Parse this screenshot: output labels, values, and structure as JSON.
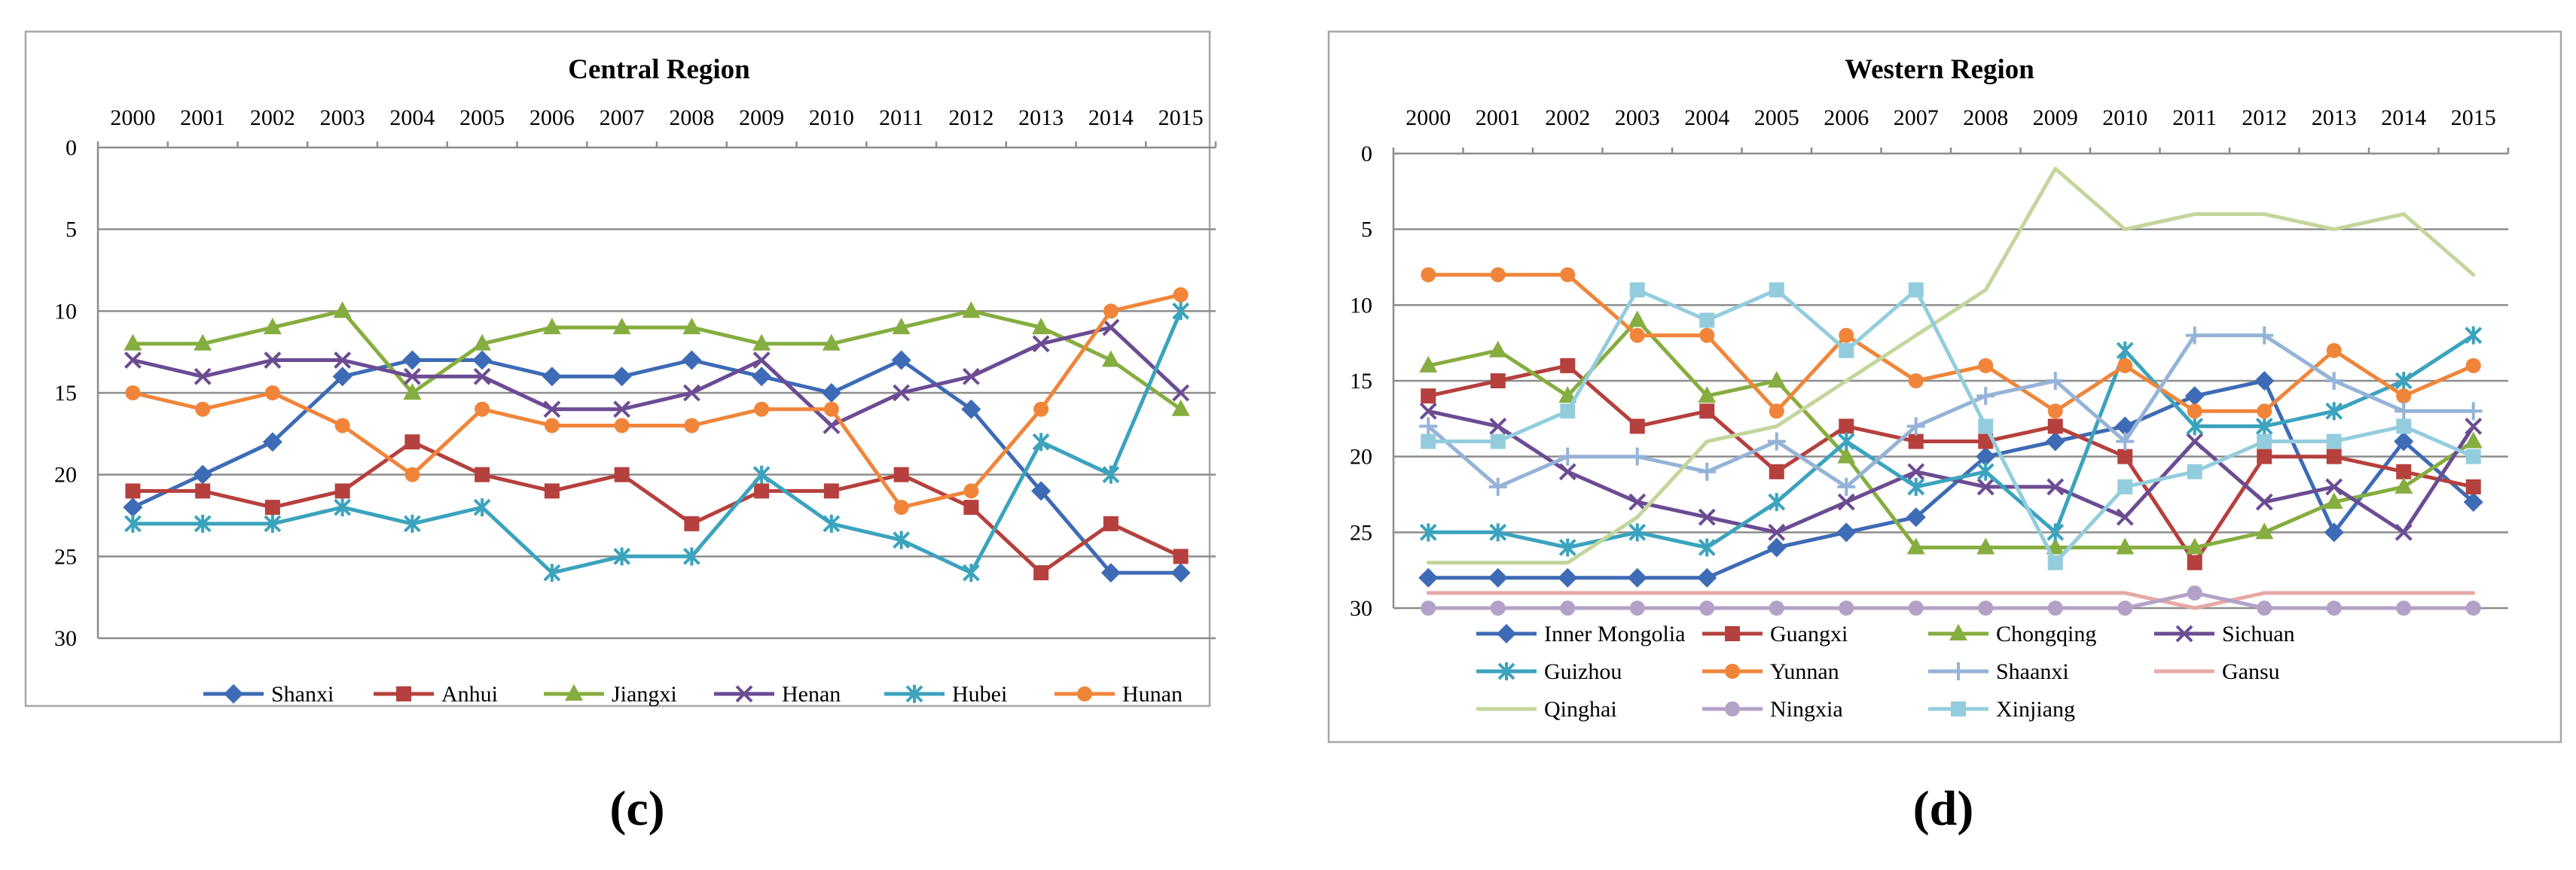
{
  "captions": [
    "(c)",
    "(d)"
  ],
  "chart_data": [
    {
      "type": "line",
      "title": "Central Region",
      "x": [
        "2000",
        "2001",
        "2002",
        "2003",
        "2004",
        "2005",
        "2006",
        "2007",
        "2008",
        "2009",
        "2010",
        "2011",
        "2012",
        "2013",
        "2014",
        "2015"
      ],
      "y_ticks": [
        "0",
        "5",
        "10",
        "15",
        "20",
        "25",
        "30"
      ],
      "ylim": [
        0,
        30
      ],
      "y_inverted": true,
      "x_axis_position": "top",
      "grid": true,
      "legend_position": "bottom",
      "series": [
        {
          "name": "Shanxi",
          "color": "#3d6bb5",
          "marker": "diamond",
          "values": [
            22,
            20,
            18,
            14,
            13,
            13,
            14,
            14,
            13,
            14,
            15,
            13,
            16,
            21,
            26,
            26
          ]
        },
        {
          "name": "Anhui",
          "color": "#b5403d",
          "marker": "square",
          "values": [
            21,
            21,
            22,
            21,
            18,
            20,
            21,
            20,
            23,
            21,
            21,
            20,
            22,
            26,
            23,
            25
          ]
        },
        {
          "name": "Jiangxi",
          "color": "#86ad3f",
          "marker": "triangle",
          "values": [
            12,
            12,
            11,
            10,
            15,
            12,
            11,
            11,
            11,
            12,
            12,
            11,
            10,
            11,
            13,
            16
          ]
        },
        {
          "name": "Henan",
          "color": "#6b4c93",
          "marker": "x",
          "values": [
            13,
            14,
            13,
            13,
            14,
            14,
            16,
            16,
            15,
            13,
            17,
            15,
            14,
            12,
            11,
            15
          ]
        },
        {
          "name": "Hubei",
          "color": "#3ba3bd",
          "marker": "asterisk",
          "values": [
            23,
            23,
            23,
            22,
            23,
            22,
            26,
            25,
            25,
            20,
            23,
            24,
            26,
            18,
            20,
            10
          ]
        },
        {
          "name": "Hunan",
          "color": "#f0853a",
          "marker": "circle",
          "values": [
            15,
            16,
            15,
            17,
            20,
            16,
            17,
            17,
            17,
            16,
            16,
            22,
            21,
            16,
            10,
            9
          ]
        }
      ]
    },
    {
      "type": "line",
      "title": "Western Region",
      "x": [
        "2000",
        "2001",
        "2002",
        "2003",
        "2004",
        "2005",
        "2006",
        "2007",
        "2008",
        "2009",
        "2010",
        "2011",
        "2012",
        "2013",
        "2014",
        "2015"
      ],
      "y_ticks": [
        "0",
        "5",
        "10",
        "15",
        "20",
        "25",
        "30"
      ],
      "ylim": [
        0,
        30
      ],
      "y_inverted": true,
      "x_axis_position": "top",
      "grid": true,
      "legend_position": "bottom",
      "series": [
        {
          "name": "Inner Mongolia",
          "color": "#3d6bb5",
          "marker": "diamond",
          "values": [
            28,
            28,
            28,
            28,
            28,
            26,
            25,
            24,
            20,
            19,
            18,
            16,
            15,
            25,
            19,
            23
          ]
        },
        {
          "name": "Guangxi",
          "color": "#b5403d",
          "marker": "square",
          "values": [
            16,
            15,
            14,
            18,
            17,
            21,
            18,
            19,
            19,
            18,
            20,
            27,
            20,
            20,
            21,
            22
          ]
        },
        {
          "name": "Chongqing",
          "color": "#86ad3f",
          "marker": "triangle",
          "values": [
            14,
            13,
            16,
            11,
            16,
            15,
            20,
            26,
            26,
            26,
            26,
            26,
            25,
            23,
            22,
            19
          ]
        },
        {
          "name": "Sichuan",
          "color": "#6b4c93",
          "marker": "x",
          "values": [
            17,
            18,
            21,
            23,
            24,
            25,
            23,
            21,
            22,
            22,
            24,
            19,
            23,
            22,
            25,
            18
          ]
        },
        {
          "name": "Guizhou",
          "color": "#3ba3bd",
          "marker": "asterisk",
          "values": [
            25,
            25,
            26,
            25,
            26,
            23,
            19,
            22,
            21,
            25,
            13,
            18,
            18,
            17,
            15,
            12
          ]
        },
        {
          "name": "Yunnan",
          "color": "#f0853a",
          "marker": "circle",
          "values": [
            8,
            8,
            8,
            12,
            12,
            17,
            12,
            15,
            14,
            17,
            14,
            17,
            17,
            13,
            16,
            14
          ]
        },
        {
          "name": "Shaanxi",
          "color": "#95b3d7",
          "marker": "plus",
          "values": [
            18,
            22,
            20,
            20,
            21,
            19,
            22,
            18,
            16,
            15,
            19,
            12,
            12,
            15,
            17,
            17
          ]
        },
        {
          "name": "Gansu",
          "color": "#e6a9a6",
          "marker": "none",
          "values": [
            29,
            29,
            29,
            29,
            29,
            29,
            29,
            29,
            29,
            29,
            29,
            30,
            29,
            29,
            29,
            29
          ]
        },
        {
          "name": "Qinghai",
          "color": "#c3d69b",
          "marker": "none",
          "values": [
            27,
            27,
            27,
            24,
            19,
            18,
            15,
            12,
            9,
            1,
            5,
            4,
            4,
            5,
            4,
            8
          ]
        },
        {
          "name": "Ningxia",
          "color": "#b3a2c7",
          "marker": "circle",
          "values": [
            30,
            30,
            30,
            30,
            30,
            30,
            30,
            30,
            30,
            30,
            30,
            29,
            30,
            30,
            30,
            30
          ]
        },
        {
          "name": "Xinjiang",
          "color": "#93cddd",
          "marker": "square",
          "values": [
            19,
            19,
            17,
            9,
            11,
            9,
            13,
            9,
            18,
            27,
            22,
            21,
            19,
            19,
            18,
            20
          ]
        }
      ]
    }
  ]
}
